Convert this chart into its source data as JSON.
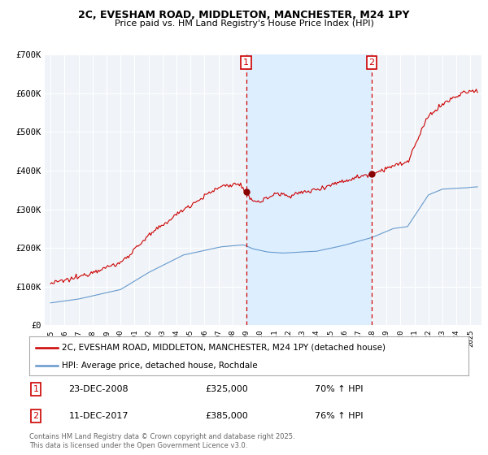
{
  "title": "2C, EVESHAM ROAD, MIDDLETON, MANCHESTER, M24 1PY",
  "subtitle": "Price paid vs. HM Land Registry's House Price Index (HPI)",
  "legend_label_red": "2C, EVESHAM ROAD, MIDDLETON, MANCHESTER, M24 1PY (detached house)",
  "legend_label_blue": "HPI: Average price, detached house, Rochdale",
  "marker1_date": "23-DEC-2008",
  "marker1_price": "£325,000",
  "marker1_hpi": "70% ↑ HPI",
  "marker2_date": "11-DEC-2017",
  "marker2_price": "£385,000",
  "marker2_hpi": "76% ↑ HPI",
  "footer": "Contains HM Land Registry data © Crown copyright and database right 2025.\nThis data is licensed under the Open Government Licence v3.0.",
  "ylim": [
    0,
    700000
  ],
  "xlim_start": 1994.6,
  "xlim_end": 2025.8,
  "vline1_x": 2008.98,
  "vline2_x": 2017.95,
  "red_color": "#cc0000",
  "blue_color": "#6699cc",
  "shade_color": "#ddeeff",
  "background_color": "#f0f4f8",
  "grid_color": "#ffffff"
}
